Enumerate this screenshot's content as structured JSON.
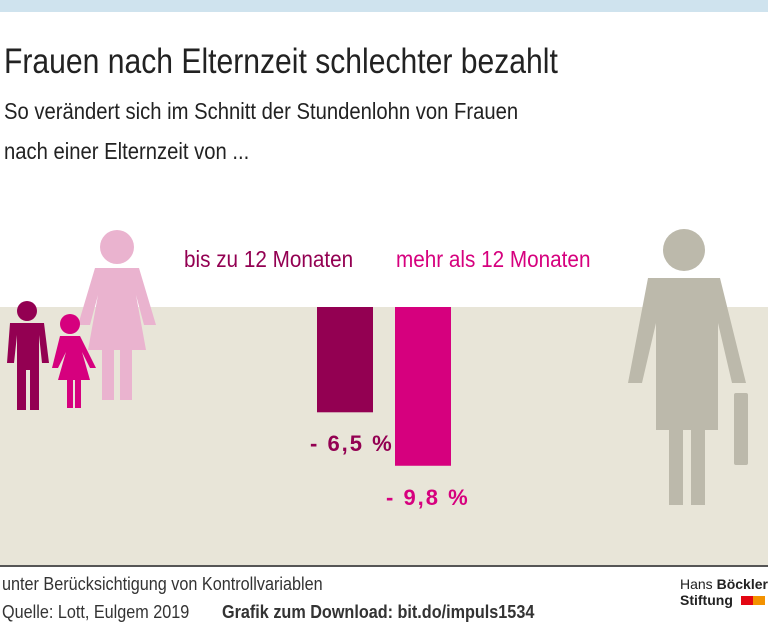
{
  "title": "Frauen nach Elternzeit schlechter bezahlt",
  "subtitle_lines": [
    "So verändert sich im Schnitt der Stundenlohn von Frauen",
    "nach einer Elternzeit von ..."
  ],
  "chart_data": {
    "type": "bar",
    "categories": [
      "bis zu 12 Monaten",
      "mehr als 12 Monaten"
    ],
    "values": [
      -6.5,
      -9.8
    ],
    "data_labels": [
      "- 6,5 %",
      "- 9,8 %"
    ],
    "colors": [
      "#930052",
      "#d6007e"
    ],
    "unit": "%"
  },
  "footer": {
    "note": "unter Berücksichtigung von Kontrollvariablen",
    "source": "Quelle: Lott, Eulgem 2019",
    "download": "Grafik zum Download: bit.do/impuls1534"
  },
  "logo": {
    "line1a": "Hans",
    "line1b": "Böckler",
    "line2": "Stiftung"
  },
  "colors": {
    "ground": "#e8e5d8",
    "topbar": "#cfe3ee",
    "figure_grey": "#bcb9ab",
    "pink_light": "#eab3cf"
  }
}
